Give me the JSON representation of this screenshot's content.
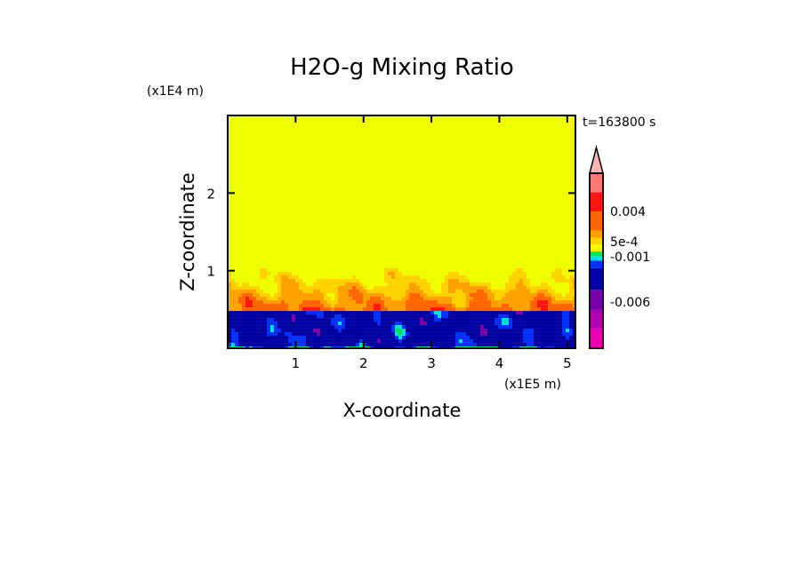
{
  "chart_data": {
    "type": "heatmap",
    "title": "H2O-g Mixing Ratio",
    "xlabel": "X-coordinate",
    "ylabel": "Z-coordinate",
    "x_unit": "(x1E5 m)",
    "y_unit": "(x1E4 m)",
    "time_label": "t=163800 s",
    "xlim": [
      0,
      5.12
    ],
    "ylim": [
      0,
      3.0
    ],
    "x_ticks": [
      "1",
      "2",
      "3",
      "4",
      "5"
    ],
    "x_tick_values": [
      1,
      2,
      3,
      4,
      5
    ],
    "y_ticks": [
      "1",
      "2"
    ],
    "y_tick_values": [
      1,
      2
    ],
    "grid": false,
    "colorbar": {
      "placement": "right",
      "labels": [
        "0.004",
        "5e-4",
        "-0.001",
        "-0.006"
      ],
      "label_level_index": [
        3,
        6,
        9,
        13
      ],
      "colors": [
        "#ffb4b4",
        "#ff7878",
        "#ff1414",
        "#ff6400",
        "#ffa000",
        "#ffd200",
        "#f0ff00",
        "#f0f000",
        "#00e060",
        "#00e0e0",
        "#0030ff",
        "#0000a8",
        "#7800a8",
        "#b000b0",
        "#e800b0"
      ]
    },
    "field_description_levels": {
      "background": "#f0ff00",
      "upper_layer_top": 1.0,
      "boundary_layer_top": 0.5
    }
  }
}
